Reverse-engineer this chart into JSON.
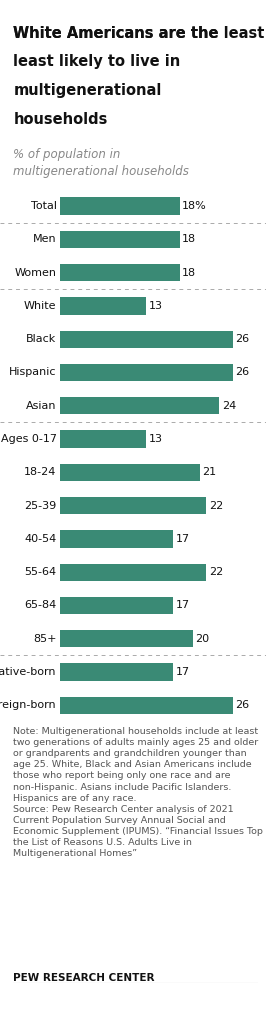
{
  "title": "White Americans are the least likely to live in multigenerational households",
  "subtitle": "% of population in\nmultigenerational households",
  "bar_color": "#3a8a75",
  "background_color": "#ffffff",
  "categories": [
    "Total",
    "Men",
    "Women",
    "White",
    "Black",
    "Hispanic",
    "Asian",
    "Ages 0-17",
    "18-24",
    "25-39",
    "40-54",
    "55-64",
    "65-84",
    "85+",
    "Native-born",
    "Foreign-born"
  ],
  "values": [
    18,
    18,
    18,
    13,
    26,
    26,
    24,
    13,
    21,
    22,
    17,
    22,
    17,
    20,
    17,
    26
  ],
  "value_labels": [
    "18%",
    "18",
    "18",
    "13",
    "26",
    "26",
    "24",
    "13",
    "21",
    "22",
    "17",
    "22",
    "17",
    "20",
    "17",
    "26"
  ],
  "dotted_line_after_idx": [
    0,
    2,
    6,
    13
  ],
  "note_text": "Note: Multigenerational households include at least two generations of adults mainly ages 25 and older or grandparents and grandchildren younger than age 25. White, Black and Asian Americans include those who report being only one race and are non-Hispanic. Asians include Pacific Islanders. Hispanics are of any race.\nSource: Pew Research Center analysis of 2021 Current Population Survey Annual Social and Economic Supplement (IPUMS). “Financial Issues Top the List of Reasons U.S. Adults Live in Multigenerational Homes”",
  "footer": "PEW RESEARCH CENTER",
  "title_fontsize": 10.5,
  "subtitle_fontsize": 8.5,
  "label_fontsize": 8,
  "value_fontsize": 8,
  "note_fontsize": 6.8,
  "footer_fontsize": 7.5,
  "bar_height": 0.52,
  "xlim_left": -9,
  "xlim_right": 31,
  "max_value": 30
}
